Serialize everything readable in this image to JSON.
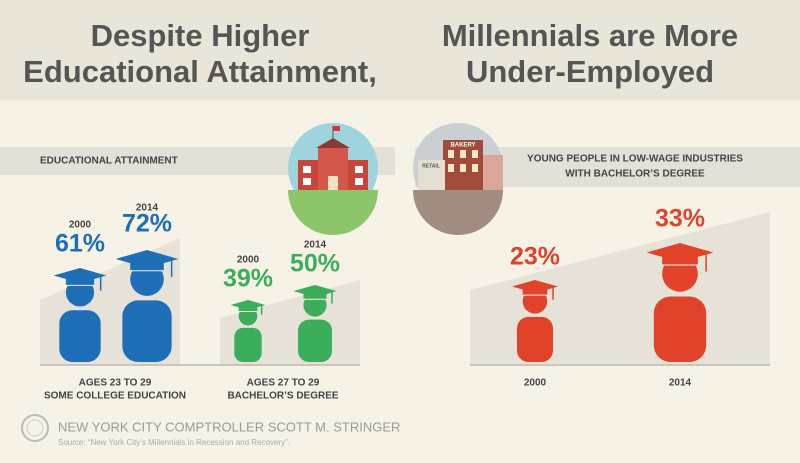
{
  "header": {
    "left": [
      "Despite Higher",
      "Educational Attainment,"
    ],
    "right": [
      "Millennials are More",
      "Under-Employed"
    ]
  },
  "education": {
    "label": "EDUCATIONAL ATTAINMENT",
    "groups": [
      {
        "caption": [
          "AGES 23 TO 29",
          "SOME COLLEGE EDUCATION"
        ],
        "years": [
          "2000",
          "2014"
        ],
        "values": [
          "61%",
          "72%"
        ]
      },
      {
        "caption": [
          "AGES 27 TO 29",
          "BACHELOR’S DEGREE"
        ],
        "years": [
          "2000",
          "2014"
        ],
        "values": [
          "39%",
          "50%"
        ]
      }
    ]
  },
  "employment": {
    "label": [
      "YOUNG PEOPLE IN LOW-WAGE INDUSTRIES",
      "WITH BACHELOR’S DEGREE"
    ],
    "years": [
      "2000",
      "2014"
    ],
    "values": [
      "23%",
      "33%"
    ],
    "icon_signs": [
      "BAKERY",
      "RETAIL"
    ]
  },
  "footer": {
    "org": "NEW YORK CITY COMPTROLLER SCOTT M. STRINGER",
    "source": "Source: “New York City’s Millennials in Recession and Recovery”."
  }
}
